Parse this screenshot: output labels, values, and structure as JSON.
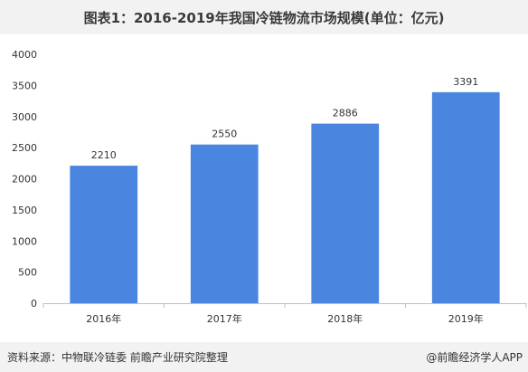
{
  "title": "图表1：2016-2019年我国冷链物流市场规模(单位：亿元)",
  "footer": {
    "source": "资料来源：中物联冷链委 前瞻产业研究院整理",
    "brand": "@前瞻经济学人APP"
  },
  "colors": {
    "bar": "#4a86e0",
    "axis": "#bfbfbf",
    "header_bg": "#f2f2f2"
  },
  "chart_data": {
    "type": "bar",
    "title": "图表1：2016-2019年我国冷链物流市场规模(单位：亿元)",
    "categories": [
      "2016年",
      "2017年",
      "2018年",
      "2019年"
    ],
    "values": [
      2210,
      2550,
      2886,
      3391
    ],
    "ylim": [
      0,
      4000
    ],
    "yticks": [
      0,
      500,
      1000,
      1500,
      2000,
      2500,
      3000,
      3500,
      4000
    ],
    "xlabel": "",
    "ylabel": "",
    "grid": false,
    "legend": "none"
  }
}
